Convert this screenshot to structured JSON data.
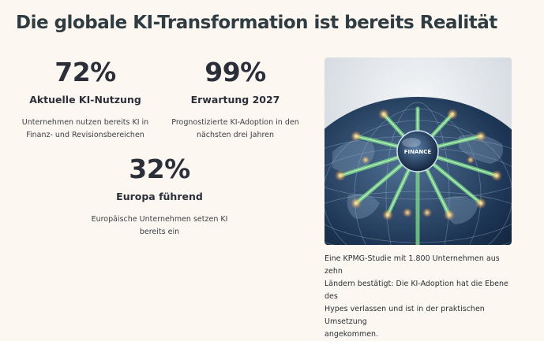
{
  "heading": "Die globale KI-Transformation ist bereits Realität",
  "stats": [
    {
      "value": "72%",
      "label": "Aktuelle KI-Nutzung",
      "desc_line1": "Unternehmen nutzen bereits KI in",
      "desc_line2": "Finanz- und Revisionsbereichen"
    },
    {
      "value": "99%",
      "label": "Erwartung 2027",
      "desc_line1": "Prognostizierte KI-Adoption in den",
      "desc_line2": "nächsten drei Jahren"
    },
    {
      "value": "32%",
      "label": "Europa führend",
      "desc_line1": "Europäische Unternehmen setzen KI",
      "desc_line2": "bereits ein"
    }
  ],
  "image": {
    "globe_label": "FINANCE"
  },
  "caption": {
    "line1": "Eine KPMG-Studie mit 1.800 Unternehmen aus zehn",
    "line2": "Ländern bestätigt: Die KI-Adoption hat die Ebene des",
    "line3": "Hypes verlassen und ist in der praktischen Umsetzung",
    "line4": "angekommen."
  }
}
